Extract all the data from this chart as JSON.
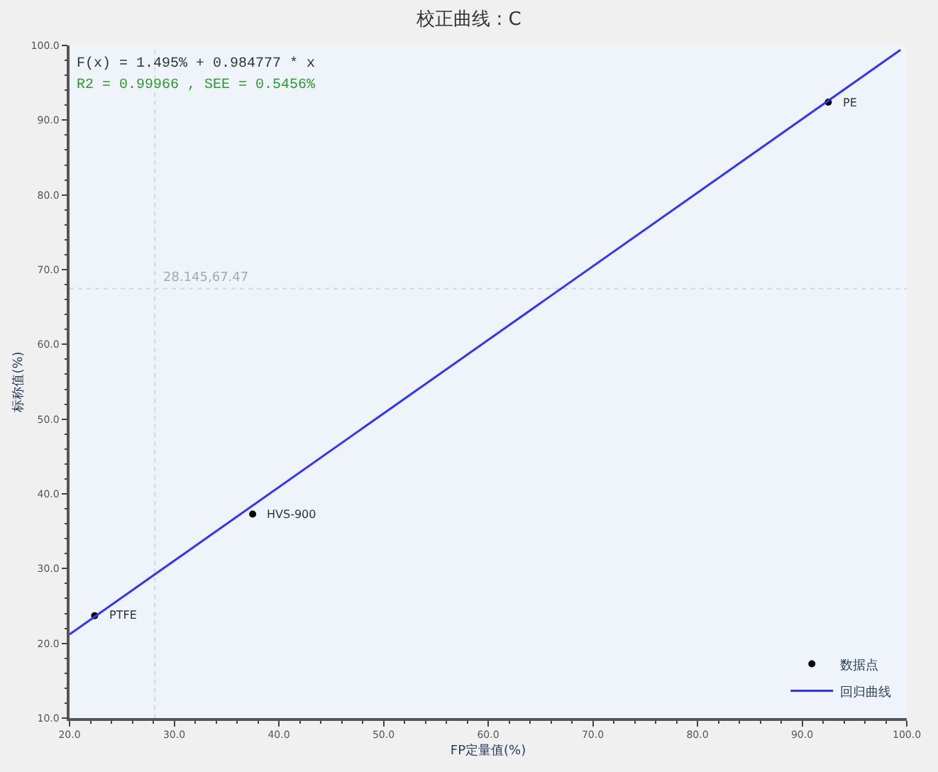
{
  "chart_data": {
    "type": "scatter",
    "title": "校正曲线 : C",
    "xlabel": "FP定量值(%)",
    "ylabel": "标称值(%)",
    "xlim": [
      20,
      100
    ],
    "ylim": [
      10,
      100
    ],
    "xticks": [
      {
        "value": 20,
        "label": "20.0"
      },
      {
        "value": 30,
        "label": "30.0"
      },
      {
        "value": 40,
        "label": "40.0"
      },
      {
        "value": 50,
        "label": "50.0"
      },
      {
        "value": 60,
        "label": "60.0"
      },
      {
        "value": 70,
        "label": "70.0"
      },
      {
        "value": 80,
        "label": "80.0"
      },
      {
        "value": 90,
        "label": "90.0"
      },
      {
        "value": 100,
        "label": "100.0"
      }
    ],
    "yticks": [
      {
        "value": 10,
        "label": "10.0"
      },
      {
        "value": 20,
        "label": "20.0"
      },
      {
        "value": 30,
        "label": "30.0"
      },
      {
        "value": 40,
        "label": "40.0"
      },
      {
        "value": 50,
        "label": "50.0"
      },
      {
        "value": 60,
        "label": "60.0"
      },
      {
        "value": 70,
        "label": "70.0"
      },
      {
        "value": 80,
        "label": "80.0"
      },
      {
        "value": 90,
        "label": "90.0"
      },
      {
        "value": 100,
        "label": "100.0"
      }
    ],
    "series": [
      {
        "name": "数据点",
        "marker": "circle",
        "color": "#000000",
        "x": [
          22.4,
          37.5,
          92.5
        ],
        "values": [
          23.7,
          37.3,
          92.4
        ]
      },
      {
        "name": "回归曲线",
        "type": "line",
        "marker": "none",
        "line_style": "solid",
        "color": "#3333ff",
        "x": [
          20,
          99.4
        ],
        "values": [
          21.2,
          99.4
        ]
      }
    ],
    "ref_lines": [
      {
        "axis": "x",
        "value": 28.145,
        "color": "#d0d8e0",
        "line_style": "dotted"
      },
      {
        "axis": "y",
        "value": 67.47,
        "color": "#d0d8e0",
        "line_style": "dotted"
      }
    ],
    "annotations": [
      {
        "text": "PTFE",
        "x": 22.4,
        "y": 23.7
      },
      {
        "text": "HVS-900",
        "x": 37.5,
        "y": 37.3
      },
      {
        "text": "PE",
        "x": 92.5,
        "y": 92.4
      },
      {
        "text": "28.145,67.47",
        "x": 28.145,
        "y": 67.47
      },
      "F(x) = 1.495% + 0.984777 * x",
      "R2 = 0.99966 , SEE = 0.5456%"
    ],
    "grid": false,
    "legend": "bottom right"
  }
}
